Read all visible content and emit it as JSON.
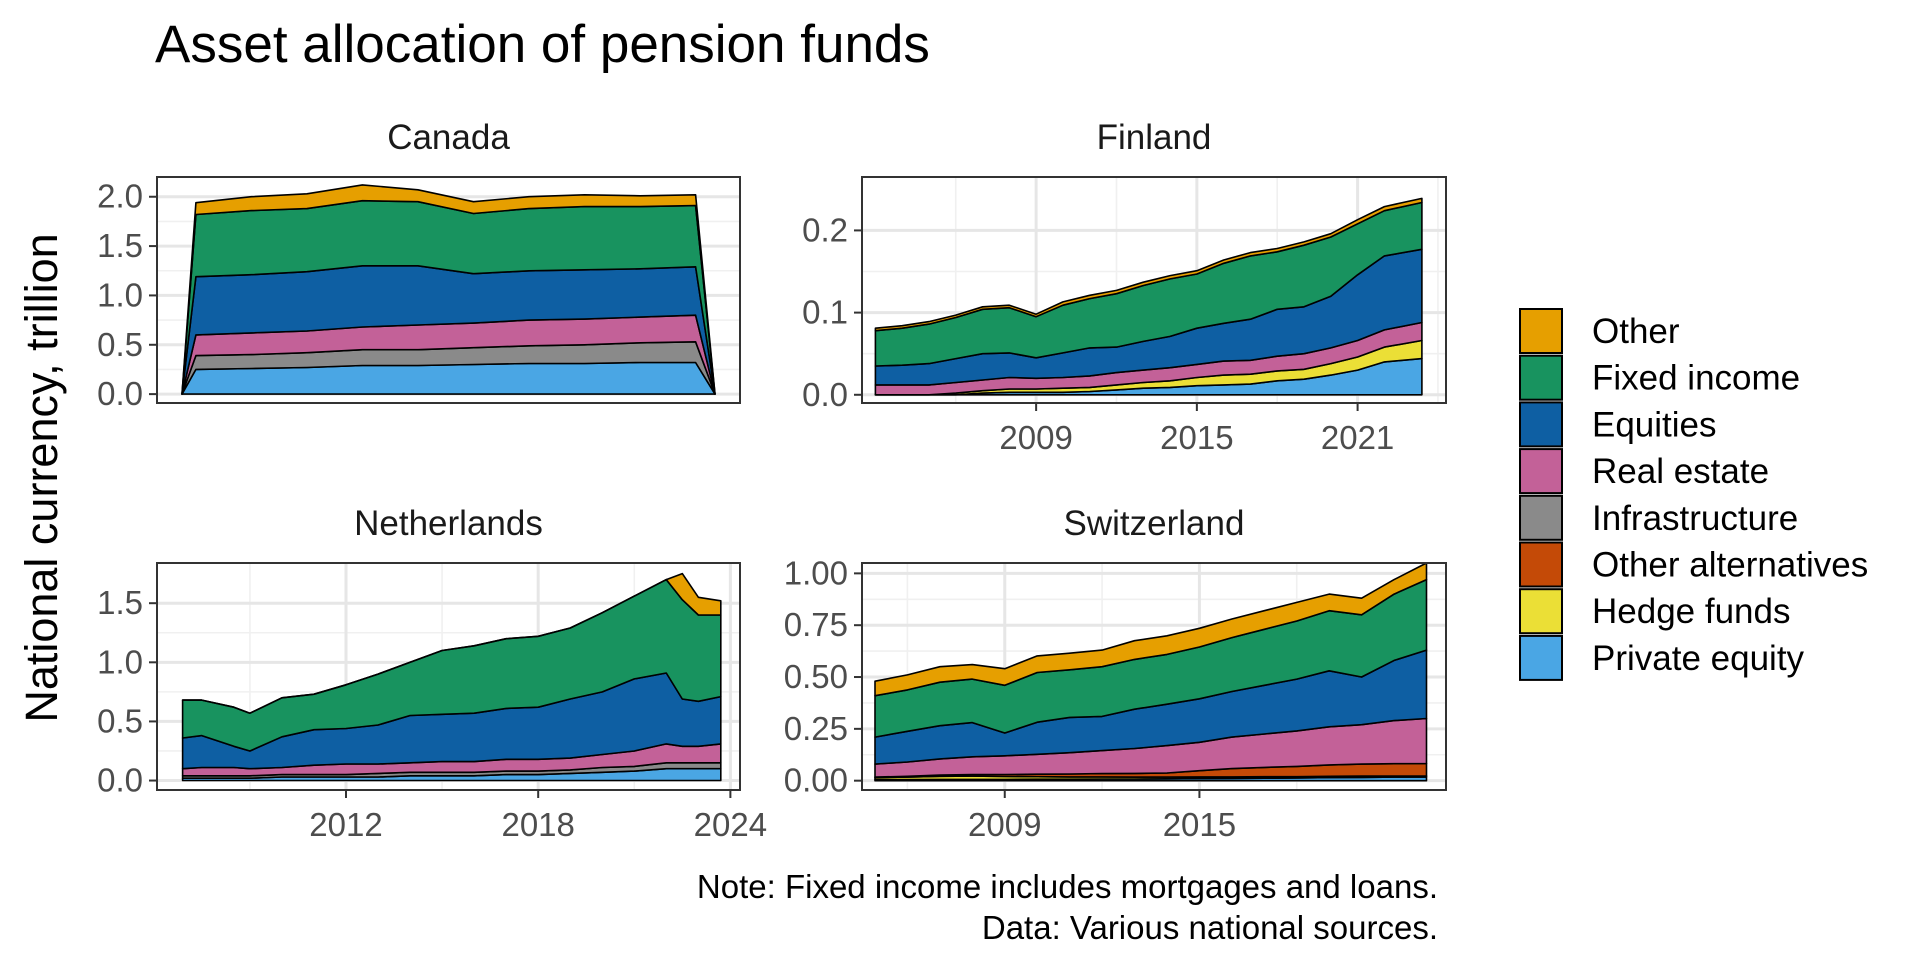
{
  "chart_data": {
    "type": "area",
    "title": "Asset allocation of pension funds",
    "ylabel": "National currency, trillion",
    "notes": [
      "Note: Fixed income includes mortgages and loans.",
      "Data: Various national sources."
    ],
    "stack_order": [
      "Private equity",
      "Hedge funds",
      "Other alternatives",
      "Infrastructure",
      "Real estate",
      "Equities",
      "Fixed income",
      "Other"
    ],
    "legend": {
      "position": "right",
      "items": [
        {
          "name": "Other",
          "color": "#E69F00"
        },
        {
          "name": "Fixed income",
          "color": "#18935F"
        },
        {
          "name": "Equities",
          "color": "#0E5FA3"
        },
        {
          "name": "Real estate",
          "color": "#C36198"
        },
        {
          "name": "Infrastructure",
          "color": "#8A8A8A"
        },
        {
          "name": "Other alternatives",
          "color": "#C44A07"
        },
        {
          "name": "Hedge funds",
          "color": "#EBDF36"
        },
        {
          "name": "Private equity",
          "color": "#4AA6E4"
        }
      ]
    },
    "panels": [
      {
        "name": "Canada",
        "xlim": [
          2003.6,
          2024.6
        ],
        "xticks": [],
        "ylim": [
          -0.09,
          2.2
        ],
        "yticks": [
          0.0,
          0.5,
          1.0,
          1.5,
          2.0
        ],
        "yticklabels": [
          "0.0",
          "0.5",
          "1.0",
          "1.5",
          "2.0"
        ],
        "x": [
          2004.5,
          2005,
          2007,
          2009,
          2011,
          2013,
          2015,
          2017,
          2019,
          2021,
          2023,
          2023.7
        ],
        "series": [
          {
            "name": "Private equity",
            "values": [
              0.0,
              0.25,
              0.26,
              0.27,
              0.29,
              0.29,
              0.3,
              0.31,
              0.31,
              0.32,
              0.32,
              0.0
            ]
          },
          {
            "name": "Infrastructure",
            "values": [
              0.0,
              0.14,
              0.14,
              0.15,
              0.16,
              0.16,
              0.17,
              0.18,
              0.19,
              0.2,
              0.21,
              0.0
            ]
          },
          {
            "name": "Real estate",
            "values": [
              0.0,
              0.21,
              0.22,
              0.22,
              0.23,
              0.25,
              0.25,
              0.26,
              0.26,
              0.26,
              0.27,
              0.0
            ]
          },
          {
            "name": "Equities",
            "values": [
              0.0,
              0.59,
              0.59,
              0.6,
              0.62,
              0.6,
              0.5,
              0.5,
              0.5,
              0.49,
              0.49,
              0.0
            ]
          },
          {
            "name": "Fixed income",
            "values": [
              0.0,
              0.63,
              0.65,
              0.64,
              0.66,
              0.65,
              0.61,
              0.63,
              0.64,
              0.63,
              0.62,
              0.0
            ]
          },
          {
            "name": "Other",
            "values": [
              0.0,
              0.12,
              0.14,
              0.15,
              0.16,
              0.12,
              0.12,
              0.12,
              0.12,
              0.11,
              0.11,
              0.0
            ]
          }
        ]
      },
      {
        "name": "Finland",
        "xlim": [
          2002.5,
          2024.3
        ],
        "xticks": [
          2009,
          2015,
          2021
        ],
        "ylim": [
          -0.01,
          0.265
        ],
        "yticks": [
          0.0,
          0.1,
          0.2
        ],
        "yticklabels": [
          "0.0",
          "0.1",
          "0.2"
        ],
        "x": [
          2003,
          2004,
          2005,
          2006,
          2007,
          2008,
          2009,
          2010,
          2011,
          2012,
          2013,
          2014,
          2015,
          2016,
          2017,
          2018,
          2019,
          2020,
          2021,
          2022,
          2023.4
        ],
        "series": [
          {
            "name": "Private equity",
            "values": [
              0.0,
              0.0,
              0.0,
              0.0,
              0.002,
              0.003,
              0.003,
              0.003,
              0.004,
              0.006,
              0.008,
              0.009,
              0.011,
              0.012,
              0.013,
              0.017,
              0.019,
              0.024,
              0.03,
              0.04,
              0.044
            ]
          },
          {
            "name": "Hedge funds",
            "values": [
              0.0,
              0.0,
              0.0,
              0.002,
              0.003,
              0.004,
              0.004,
              0.005,
              0.005,
              0.006,
              0.007,
              0.008,
              0.01,
              0.012,
              0.012,
              0.012,
              0.012,
              0.014,
              0.016,
              0.018,
              0.022
            ]
          },
          {
            "name": "Real estate",
            "values": [
              0.012,
              0.012,
              0.012,
              0.013,
              0.013,
              0.014,
              0.013,
              0.013,
              0.014,
              0.015,
              0.015,
              0.016,
              0.016,
              0.017,
              0.017,
              0.018,
              0.019,
              0.019,
              0.02,
              0.021,
              0.022
            ]
          },
          {
            "name": "Equities",
            "values": [
              0.023,
              0.024,
              0.026,
              0.029,
              0.032,
              0.03,
              0.025,
              0.03,
              0.034,
              0.031,
              0.035,
              0.038,
              0.044,
              0.046,
              0.05,
              0.057,
              0.057,
              0.063,
              0.08,
              0.09,
              0.089
            ]
          },
          {
            "name": "Fixed income",
            "values": [
              0.043,
              0.045,
              0.048,
              0.05,
              0.054,
              0.055,
              0.05,
              0.058,
              0.06,
              0.065,
              0.068,
              0.07,
              0.066,
              0.073,
              0.077,
              0.07,
              0.075,
              0.072,
              0.062,
              0.055,
              0.057
            ]
          },
          {
            "name": "Other",
            "values": [
              0.003,
              0.003,
              0.003,
              0.003,
              0.003,
              0.003,
              0.003,
              0.004,
              0.004,
              0.004,
              0.004,
              0.004,
              0.004,
              0.004,
              0.004,
              0.004,
              0.004,
              0.004,
              0.005,
              0.005,
              0.005
            ]
          }
        ]
      },
      {
        "name": "Netherlands",
        "xlim": [
          2006.1,
          2024.3
        ],
        "xticks": [
          2012,
          2018,
          2024
        ],
        "ylim": [
          -0.08,
          1.84
        ],
        "yticks": [
          0.0,
          0.5,
          1.0,
          1.5
        ],
        "yticklabels": [
          "0.0",
          "0.5",
          "1.0",
          "1.5"
        ],
        "x": [
          2006.9,
          2007.5,
          2008.5,
          2009,
          2010,
          2011,
          2012,
          2013,
          2014,
          2015,
          2016,
          2017,
          2018,
          2019,
          2020,
          2021,
          2022,
          2022.5,
          2023,
          2023.7
        ],
        "series": [
          {
            "name": "Private equity",
            "values": [
              0.02,
              0.02,
              0.02,
              0.02,
              0.03,
              0.03,
              0.03,
              0.03,
              0.04,
              0.04,
              0.04,
              0.05,
              0.05,
              0.06,
              0.07,
              0.08,
              0.1,
              0.1,
              0.1,
              0.1
            ]
          },
          {
            "name": "Infrastructure",
            "values": [
              0.02,
              0.02,
              0.02,
              0.02,
              0.02,
              0.02,
              0.02,
              0.03,
              0.03,
              0.03,
              0.03,
              0.03,
              0.03,
              0.03,
              0.04,
              0.04,
              0.05,
              0.05,
              0.05,
              0.05
            ]
          },
          {
            "name": "Real estate",
            "values": [
              0.06,
              0.07,
              0.07,
              0.06,
              0.06,
              0.08,
              0.09,
              0.08,
              0.08,
              0.09,
              0.09,
              0.1,
              0.1,
              0.1,
              0.11,
              0.13,
              0.16,
              0.14,
              0.14,
              0.16
            ]
          },
          {
            "name": "Equities",
            "values": [
              0.26,
              0.27,
              0.18,
              0.15,
              0.26,
              0.3,
              0.3,
              0.33,
              0.4,
              0.4,
              0.41,
              0.43,
              0.44,
              0.5,
              0.53,
              0.61,
              0.6,
              0.4,
              0.38,
              0.4
            ]
          },
          {
            "name": "Fixed income",
            "values": [
              0.32,
              0.3,
              0.33,
              0.32,
              0.33,
              0.3,
              0.37,
              0.43,
              0.45,
              0.54,
              0.57,
              0.59,
              0.6,
              0.6,
              0.67,
              0.7,
              0.79,
              0.84,
              0.73,
              0.69
            ]
          },
          {
            "name": "Other",
            "values": [
              0.0,
              0.0,
              0.0,
              0.0,
              0.0,
              0.0,
              0.0,
              0.0,
              0.0,
              0.0,
              0.0,
              0.0,
              0.0,
              0.0,
              0.0,
              0.0,
              0.0,
              0.22,
              0.15,
              0.12
            ]
          }
        ]
      },
      {
        "name": "Switzerland",
        "xlim": [
          2004.6,
          2022.6
        ],
        "xticks": [
          2009,
          2015
        ],
        "ylim": [
          -0.045,
          1.05
        ],
        "yticks": [
          0.0,
          0.25,
          0.5,
          0.75,
          1.0
        ],
        "yticklabels": [
          "0.00",
          "0.25",
          "0.50",
          "0.75",
          "1.00"
        ],
        "x": [
          2005,
          2006,
          2007,
          2008,
          2009,
          2010,
          2011,
          2012,
          2013,
          2014,
          2015,
          2016,
          2017,
          2018,
          2019,
          2020,
          2021,
          2022
        ],
        "series": [
          {
            "name": "Private equity",
            "values": [
              0.005,
              0.005,
              0.006,
              0.006,
              0.006,
              0.007,
              0.007,
              0.008,
              0.008,
              0.009,
              0.01,
              0.011,
              0.012,
              0.013,
              0.015,
              0.016,
              0.017,
              0.018
            ]
          },
          {
            "name": "Hedge funds",
            "values": [
              0.01,
              0.012,
              0.015,
              0.016,
              0.014,
              0.012,
              0.011,
              0.01,
              0.009,
              0.008,
              0.008,
              0.007,
              0.007,
              0.006,
              0.006,
              0.006,
              0.005,
              0.005
            ]
          },
          {
            "name": "Other alternatives",
            "values": [
              0.002,
              0.004,
              0.006,
              0.008,
              0.01,
              0.012,
              0.014,
              0.016,
              0.018,
              0.02,
              0.03,
              0.04,
              0.045,
              0.05,
              0.055,
              0.058,
              0.06,
              0.06
            ]
          },
          {
            "name": "Real estate",
            "values": [
              0.063,
              0.069,
              0.078,
              0.085,
              0.09,
              0.096,
              0.103,
              0.111,
              0.12,
              0.132,
              0.137,
              0.152,
              0.161,
              0.171,
              0.184,
              0.19,
              0.208,
              0.217
            ]
          },
          {
            "name": "Equities",
            "values": [
              0.13,
              0.148,
              0.16,
              0.165,
              0.11,
              0.155,
              0.17,
              0.165,
              0.19,
              0.2,
              0.21,
              0.22,
              0.235,
              0.25,
              0.27,
              0.23,
              0.29,
              0.33
            ]
          },
          {
            "name": "Fixed income",
            "values": [
              0.2,
              0.2,
              0.21,
              0.21,
              0.23,
              0.24,
              0.23,
              0.24,
              0.24,
              0.24,
              0.25,
              0.26,
              0.27,
              0.28,
              0.29,
              0.3,
              0.32,
              0.34
            ]
          },
          {
            "name": "Other",
            "values": [
              0.07,
              0.072,
              0.075,
              0.07,
              0.08,
              0.08,
              0.08,
              0.08,
              0.09,
              0.09,
              0.09,
              0.09,
              0.09,
              0.09,
              0.08,
              0.08,
              0.07,
              0.08
            ]
          }
        ]
      }
    ]
  }
}
